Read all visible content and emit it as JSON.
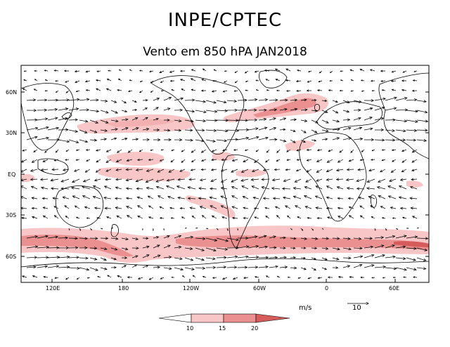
{
  "header": {
    "title": "INPE/CPTEC",
    "subtitle": "Vento em 850 hPA JAN2018"
  },
  "map": {
    "projection": "cylindrical-equidistant",
    "central_longitude_deg": 180,
    "lat_labels": [
      "60N",
      "30N",
      "EQ",
      "30S",
      "60S"
    ],
    "lon_labels": [
      "120E",
      "180",
      "120W",
      "60W",
      "0",
      "60E"
    ],
    "jet_regions": [
      {
        "name": "north-pacific-jet",
        "level": 10
      },
      {
        "name": "north-atlantic-jet",
        "level": 15
      },
      {
        "name": "equatorial-pacific-easterlies",
        "level": 10
      },
      {
        "name": "south-pacific-convergence",
        "level": 10
      },
      {
        "name": "southern-ocean-westerlies",
        "level": 20
      }
    ]
  },
  "legend": {
    "units": "m/s",
    "reference_vector": "10",
    "levels": [
      "10",
      "15",
      "20"
    ],
    "colors": [
      "#ffffff",
      "#f8c6c6",
      "#ea9090",
      "#d65c5c"
    ]
  }
}
